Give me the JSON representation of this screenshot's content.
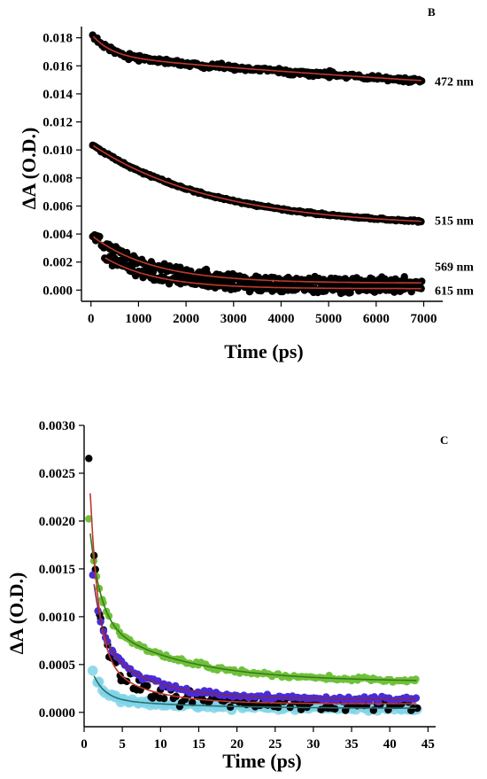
{
  "chart_data": [
    {
      "panel": "B",
      "type": "scatter",
      "xlabel": "Time (ps)",
      "ylabel": "ΔA (O.D.)",
      "xlim": [
        -200,
        7400
      ],
      "ylim": [
        -0.0008,
        0.0188
      ],
      "xticks": [
        0,
        1000,
        2000,
        3000,
        4000,
        5000,
        6000,
        7000
      ],
      "yticks": [
        0.0,
        0.002,
        0.004,
        0.006,
        0.008,
        0.01,
        0.012,
        0.014,
        0.016,
        0.018
      ],
      "ytick_decimals": 3,
      "grid": false,
      "series": [
        {
          "name": "472 nm",
          "marker_color": "#000000",
          "fit_color": "#c0392b",
          "x_start": 50,
          "x_end": 6950,
          "fit": {
            "a1": 0.0014,
            "t1": 400,
            "a2": 0.0055,
            "t2": 18000,
            "c": 0.0112
          },
          "noise": 0.0002,
          "label_y": 0.0149
        },
        {
          "name": "515 nm",
          "marker_color": "#000000",
          "fit_color": "#c0392b",
          "x_start": 50,
          "x_end": 6950,
          "fit": {
            "a1": 0.0,
            "t1": 500,
            "a2": 0.0058,
            "t2": 2600,
            "c": 0.0045
          },
          "noise": 7e-05,
          "label_y": 0.005
        },
        {
          "name": "569 nm",
          "marker_color": "#000000",
          "fit_color": "#c0392b",
          "x_start": 50,
          "x_end": 6950,
          "fit": {
            "a1": 0.0,
            "t1": 300,
            "a2": 0.0033,
            "t2": 1300,
            "c": 0.0005
          },
          "noise": 0.00035,
          "label_y": 0.0017
        },
        {
          "name": "615 nm",
          "marker_color": "#000000",
          "fit_color": "#c0392b",
          "x_start": 300,
          "x_end": 6950,
          "fit": {
            "a1": 0.0,
            "t1": 300,
            "a2": 0.0022,
            "t2": 1100,
            "c": 0.0001
          },
          "noise": 0.0003,
          "label_y": 0.0
        }
      ],
      "annotation": "B"
    },
    {
      "panel": "C",
      "type": "scatter",
      "xlabel": "Time (ps)",
      "ylabel": "ΔA (O.D.)",
      "xlim": [
        0,
        46
      ],
      "ylim": [
        -0.00015,
        0.003
      ],
      "xticks": [
        0,
        5,
        10,
        15,
        20,
        25,
        30,
        35,
        40,
        45
      ],
      "yticks": [
        0.0,
        0.0005,
        0.001,
        0.0015,
        0.002,
        0.0025,
        0.003
      ],
      "ytick_decimals": 4,
      "grid": false,
      "series": [
        {
          "marker_color": "#7fd3e8",
          "fit_color": "#2c6f6f",
          "x_start": 1.3,
          "x_end": 43.5,
          "fit": {
            "a1": 0.00024,
            "t1": 1.5,
            "a2": 0.0001,
            "t2": 12,
            "c": 4e-05
          },
          "noise": 3e-05,
          "big": true
        },
        {
          "marker_color": "#6ec23b",
          "fit_color": "#3d7a1a",
          "x_start": 0.8,
          "x_end": 43.5,
          "fit": {
            "a1": 0.0009,
            "t1": 1.4,
            "a2": 0.00065,
            "t2": 11,
            "c": 0.00032
          },
          "noise": 2.5e-05
        },
        {
          "marker_color": "#000000",
          "fit_color": "#c0392b",
          "x_start": 0.8,
          "x_end": 43.5,
          "fit": {
            "a1": 0.0017,
            "t1": 1.1,
            "a2": 0.0005,
            "t2": 6,
            "c": 9e-05
          },
          "noise": 8e-05
        },
        {
          "marker_color": "#4a2bd8",
          "fit_color": "#7a2a5a",
          "x_start": 1.3,
          "x_end": 43.5,
          "fit": {
            "a1": 0.0006,
            "t1": 1.2,
            "a2": 0.0006,
            "t2": 6.5,
            "c": 0.00014
          },
          "noise": 3e-05
        }
      ],
      "annotation": "C"
    }
  ]
}
